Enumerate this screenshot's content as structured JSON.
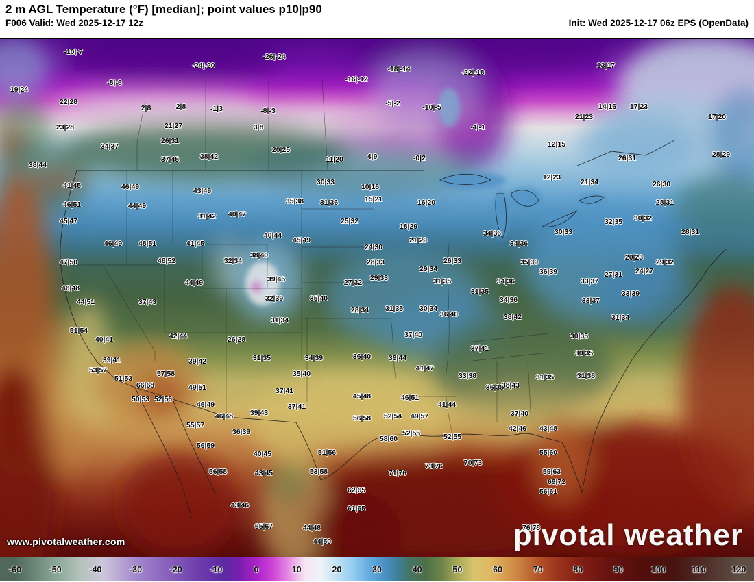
{
  "header": {
    "title": "2 m AGL Temperature (°F) [median]; point values p10|p90",
    "valid_label": "F006 Valid: Wed 2025-12-17 12z",
    "init_label": "Init: Wed 2025-12-17 06z EPS (OpenData)"
  },
  "map": {
    "watermark": "www.pivotalweather.com",
    "logo_text": "pivotal weather",
    "point_values": [
      [
        107,
        75,
        "-10|-7"
      ],
      [
        297,
        95,
        "-24|-20"
      ],
      [
        400,
        82,
        "-26|-24"
      ],
      [
        520,
        115,
        "-16|-12"
      ],
      [
        582,
        100,
        "-18|-14"
      ],
      [
        690,
        105,
        "-22|-18"
      ],
      [
        884,
        95,
        "13|17"
      ],
      [
        28,
        130,
        "19|24"
      ],
      [
        167,
        120,
        "-8|-6"
      ],
      [
        100,
        148,
        "22|28"
      ],
      [
        213,
        157,
        "2|8"
      ],
      [
        264,
        155,
        "2|8"
      ],
      [
        316,
        158,
        "-1|3"
      ],
      [
        391,
        161,
        "-8|-3"
      ],
      [
        573,
        150,
        "-5|-2"
      ],
      [
        630,
        156,
        "-10|-5"
      ],
      [
        886,
        155,
        "14|16"
      ],
      [
        932,
        155,
        "17|23"
      ],
      [
        1046,
        170,
        "17|20"
      ],
      [
        852,
        170,
        "21|23"
      ],
      [
        95,
        185,
        "23|28"
      ],
      [
        253,
        183,
        "21|27"
      ],
      [
        377,
        185,
        "3|8"
      ],
      [
        697,
        185,
        "-4|-1"
      ],
      [
        812,
        210,
        "12|15"
      ],
      [
        160,
        213,
        "34|37"
      ],
      [
        248,
        205,
        "26|31"
      ],
      [
        410,
        218,
        "20|25"
      ],
      [
        248,
        232,
        "37|45"
      ],
      [
        305,
        228,
        "38|42"
      ],
      [
        488,
        232,
        "11|20"
      ],
      [
        543,
        228,
        "4|9"
      ],
      [
        612,
        230,
        "-0|2"
      ],
      [
        915,
        230,
        "26|31"
      ],
      [
        1052,
        225,
        "28|29"
      ],
      [
        55,
        240,
        "38|44"
      ],
      [
        475,
        265,
        "30|33"
      ],
      [
        540,
        272,
        "10|16"
      ],
      [
        805,
        258,
        "12|23"
      ],
      [
        860,
        265,
        "21|34"
      ],
      [
        965,
        268,
        "26|30"
      ],
      [
        105,
        270,
        "41|45"
      ],
      [
        190,
        272,
        "46|49"
      ],
      [
        295,
        278,
        "43|49"
      ],
      [
        545,
        290,
        "15|21"
      ],
      [
        480,
        295,
        "31|36"
      ],
      [
        622,
        295,
        "16|20"
      ],
      [
        970,
        295,
        "28|31"
      ],
      [
        105,
        298,
        "46|51"
      ],
      [
        200,
        300,
        "44|49"
      ],
      [
        430,
        293,
        "35|38"
      ],
      [
        100,
        322,
        "45|47"
      ],
      [
        302,
        315,
        "31|42"
      ],
      [
        346,
        312,
        "40|47"
      ],
      [
        510,
        322,
        "25|32"
      ],
      [
        596,
        330,
        "18|29"
      ],
      [
        895,
        323,
        "32|35"
      ],
      [
        938,
        318,
        "30|32"
      ],
      [
        1007,
        338,
        "28|31"
      ],
      [
        610,
        350,
        "21|29"
      ],
      [
        545,
        360,
        "24|30"
      ],
      [
        165,
        355,
        "46|49"
      ],
      [
        215,
        355,
        "48|51"
      ],
      [
        285,
        355,
        "41|45"
      ],
      [
        398,
        343,
        "40|44"
      ],
      [
        440,
        350,
        "45|49"
      ],
      [
        718,
        340,
        "34|36"
      ],
      [
        757,
        355,
        "34|36"
      ],
      [
        822,
        338,
        "30|33"
      ],
      [
        100,
        382,
        "47|50"
      ],
      [
        243,
        380,
        "48|52"
      ],
      [
        340,
        380,
        "32|34"
      ],
      [
        378,
        372,
        "38|40"
      ],
      [
        548,
        382,
        "28|33"
      ],
      [
        625,
        392,
        "29|34"
      ],
      [
        660,
        380,
        "26|33"
      ],
      [
        772,
        382,
        "35|39"
      ],
      [
        800,
        396,
        "36|39"
      ],
      [
        925,
        375,
        "20|23"
      ],
      [
        970,
        382,
        "29|32"
      ],
      [
        940,
        395,
        "24|27"
      ],
      [
        895,
        400,
        "27|31"
      ],
      [
        860,
        410,
        "33|37"
      ],
      [
        103,
        420,
        "46|48"
      ],
      [
        125,
        440,
        "44|51"
      ],
      [
        215,
        440,
        "37|43"
      ],
      [
        283,
        412,
        "44|49"
      ],
      [
        403,
        407,
        "39|45"
      ],
      [
        400,
        435,
        "32|39"
      ],
      [
        465,
        435,
        "35|40"
      ],
      [
        515,
        412,
        "27|32"
      ],
      [
        553,
        405,
        "29|33"
      ],
      [
        645,
        410,
        "31|35"
      ],
      [
        700,
        425,
        "31|35"
      ],
      [
        738,
        410,
        "34|36"
      ],
      [
        920,
        428,
        "33|39"
      ],
      [
        862,
        438,
        "33|37"
      ],
      [
        408,
        467,
        "31|34"
      ],
      [
        525,
        452,
        "28|34"
      ],
      [
        575,
        450,
        "31|35"
      ],
      [
        625,
        450,
        "30|34"
      ],
      [
        655,
        458,
        "36|40"
      ],
      [
        742,
        437,
        "34|36"
      ],
      [
        748,
        462,
        "38|42"
      ],
      [
        905,
        463,
        "31|34"
      ],
      [
        115,
        482,
        "51|54"
      ],
      [
        152,
        495,
        "40|41"
      ],
      [
        260,
        490,
        "42|44"
      ],
      [
        345,
        495,
        "26|28"
      ],
      [
        603,
        488,
        "37|40"
      ],
      [
        700,
        508,
        "37|41"
      ],
      [
        845,
        490,
        "30|35"
      ],
      [
        163,
        525,
        "39|41"
      ],
      [
        288,
        527,
        "39|42"
      ],
      [
        382,
        522,
        "31|35"
      ],
      [
        458,
        522,
        "34|39"
      ],
      [
        528,
        520,
        "36|40"
      ],
      [
        580,
        522,
        "39|44"
      ],
      [
        620,
        537,
        "41|47"
      ],
      [
        852,
        515,
        "30|35"
      ],
      [
        143,
        540,
        "53|57"
      ],
      [
        180,
        552,
        "51|53"
      ],
      [
        242,
        545,
        "57|58"
      ],
      [
        212,
        562,
        "66|68"
      ],
      [
        288,
        565,
        "49|51"
      ],
      [
        440,
        545,
        "35|40"
      ],
      [
        682,
        548,
        "33|38"
      ],
      [
        795,
        550,
        "31|35"
      ],
      [
        855,
        548,
        "31|36"
      ],
      [
        722,
        565,
        "36|38"
      ],
      [
        745,
        562,
        "38|43"
      ],
      [
        205,
        582,
        "50|53"
      ],
      [
        238,
        582,
        "52|56"
      ],
      [
        300,
        590,
        "46|49"
      ],
      [
        415,
        570,
        "37|41"
      ],
      [
        433,
        593,
        "37|41"
      ],
      [
        528,
        578,
        "45|48"
      ],
      [
        598,
        580,
        "46|51"
      ],
      [
        652,
        590,
        "41|44"
      ],
      [
        758,
        603,
        "37|40"
      ],
      [
        327,
        607,
        "46|48"
      ],
      [
        378,
        602,
        "39|43"
      ],
      [
        528,
        610,
        "56|58"
      ],
      [
        573,
        607,
        "52|54"
      ],
      [
        612,
        607,
        "49|57"
      ],
      [
        755,
        625,
        "42|46"
      ],
      [
        800,
        625,
        "43|48"
      ],
      [
        285,
        620,
        "55|57"
      ],
      [
        352,
        630,
        "36|39"
      ],
      [
        600,
        632,
        "52|55"
      ],
      [
        660,
        637,
        "52|55"
      ],
      [
        567,
        640,
        "58|60"
      ],
      [
        300,
        650,
        "56|59"
      ],
      [
        383,
        662,
        "40|45"
      ],
      [
        477,
        660,
        "51|56"
      ],
      [
        800,
        660,
        "55|60"
      ],
      [
        580,
        690,
        "71|76"
      ],
      [
        633,
        680,
        "73|76"
      ],
      [
        690,
        675,
        "70|73"
      ],
      [
        318,
        688,
        "56|58"
      ],
      [
        385,
        690,
        "43|45"
      ],
      [
        465,
        688,
        "53|58"
      ],
      [
        805,
        688,
        "59|63"
      ],
      [
        812,
        703,
        "69|72"
      ],
      [
        800,
        717,
        "56|61"
      ],
      [
        520,
        715,
        "62|65"
      ],
      [
        350,
        737,
        "43|46"
      ],
      [
        520,
        742,
        "61|65"
      ],
      [
        455,
        770,
        "44|48"
      ],
      [
        385,
        768,
        "65|67"
      ],
      [
        470,
        790,
        "44|50"
      ],
      [
        775,
        770,
        "76|78"
      ]
    ]
  },
  "colorbar": {
    "min": -60,
    "max": 120,
    "ticks": [
      -60,
      -50,
      -40,
      -30,
      -20,
      -10,
      0,
      10,
      20,
      30,
      40,
      50,
      60,
      70,
      80,
      90,
      100,
      110,
      120
    ],
    "stops": [
      {
        "v": -60,
        "c": "#50685c"
      },
      {
        "v": -52,
        "c": "#7c9a8a"
      },
      {
        "v": -44,
        "c": "#b2c2ba"
      },
      {
        "v": -38,
        "c": "#ccc6dc"
      },
      {
        "v": -30,
        "c": "#a488cc"
      },
      {
        "v": -22,
        "c": "#8860bc"
      },
      {
        "v": -14,
        "c": "#6c3cac"
      },
      {
        "v": -8,
        "c": "#5c2aa2"
      },
      {
        "v": -4,
        "c": "#7c1eb0"
      },
      {
        "v": 0,
        "c": "#aa22c8"
      },
      {
        "v": 4,
        "c": "#cc44d6"
      },
      {
        "v": 8,
        "c": "#e88ce4"
      },
      {
        "v": 12,
        "c": "#f6e4f2"
      },
      {
        "v": 16,
        "c": "#eef4f8"
      },
      {
        "v": 20,
        "c": "#c0e0f4"
      },
      {
        "v": 24,
        "c": "#94cdf0"
      },
      {
        "v": 28,
        "c": "#64acdf"
      },
      {
        "v": 32,
        "c": "#4a90c4"
      },
      {
        "v": 35,
        "c": "#40809c"
      },
      {
        "v": 38,
        "c": "#447464"
      },
      {
        "v": 42,
        "c": "#4e7048"
      },
      {
        "v": 46,
        "c": "#6c8448"
      },
      {
        "v": 50,
        "c": "#a8a858"
      },
      {
        "v": 54,
        "c": "#d8c46c"
      },
      {
        "v": 58,
        "c": "#e0b864"
      },
      {
        "v": 62,
        "c": "#d69c50"
      },
      {
        "v": 66,
        "c": "#c87c3e"
      },
      {
        "v": 70,
        "c": "#b45428"
      },
      {
        "v": 75,
        "c": "#9c341c"
      },
      {
        "v": 80,
        "c": "#842014"
      },
      {
        "v": 88,
        "c": "#661210"
      },
      {
        "v": 96,
        "c": "#520e0c"
      },
      {
        "v": 104,
        "c": "#481410"
      },
      {
        "v": 112,
        "c": "#50302a"
      },
      {
        "v": 120,
        "c": "#5e4e44"
      }
    ]
  }
}
